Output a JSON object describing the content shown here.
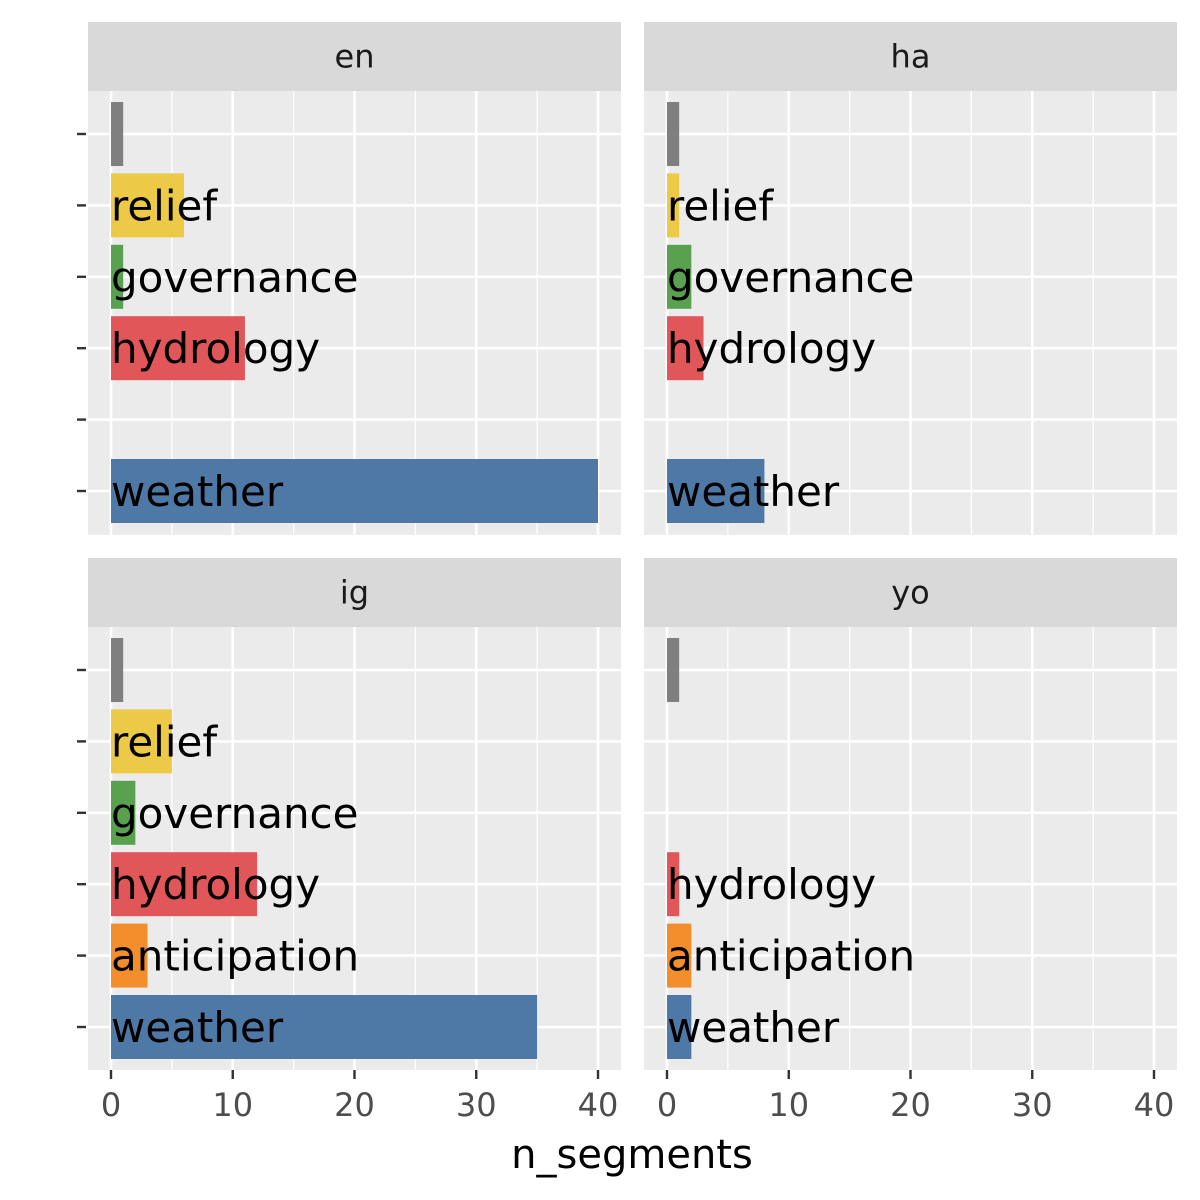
{
  "chart_data": {
    "type": "bar",
    "orientation": "horizontal",
    "facet_by": "language",
    "xlabel": "n_segments",
    "ylabel": "",
    "xlim": [
      0,
      40
    ],
    "x_ticks": [
      0,
      10,
      20,
      30,
      40
    ],
    "grid": true,
    "categories": [
      "",
      "relief",
      "governance",
      "hydrology",
      "anticipation",
      "weather"
    ],
    "colors": {
      "": "#7f7f7f",
      "relief": "#edc948",
      "governance": "#59a14f",
      "hydrology": "#e15759",
      "anticipation": "#f28e2b",
      "weather": "#4e79a7"
    },
    "panels": [
      {
        "name": "en",
        "categories": [
          "",
          "relief",
          "governance",
          "hydrology",
          "anticipation",
          "weather"
        ],
        "values": [
          1,
          6,
          1,
          11,
          null,
          40
        ]
      },
      {
        "name": "ha",
        "categories": [
          "",
          "relief",
          "governance",
          "hydrology",
          "anticipation",
          "weather"
        ],
        "values": [
          1,
          1,
          2,
          3,
          null,
          8
        ]
      },
      {
        "name": "ig",
        "categories": [
          "",
          "relief",
          "governance",
          "hydrology",
          "anticipation",
          "weather"
        ],
        "values": [
          1,
          5,
          2,
          12,
          3,
          35
        ]
      },
      {
        "name": "yo",
        "categories": [
          "",
          "relief",
          "governance",
          "hydrology",
          "anticipation",
          "weather"
        ],
        "values": [
          1,
          null,
          null,
          1,
          2,
          2
        ]
      }
    ]
  }
}
